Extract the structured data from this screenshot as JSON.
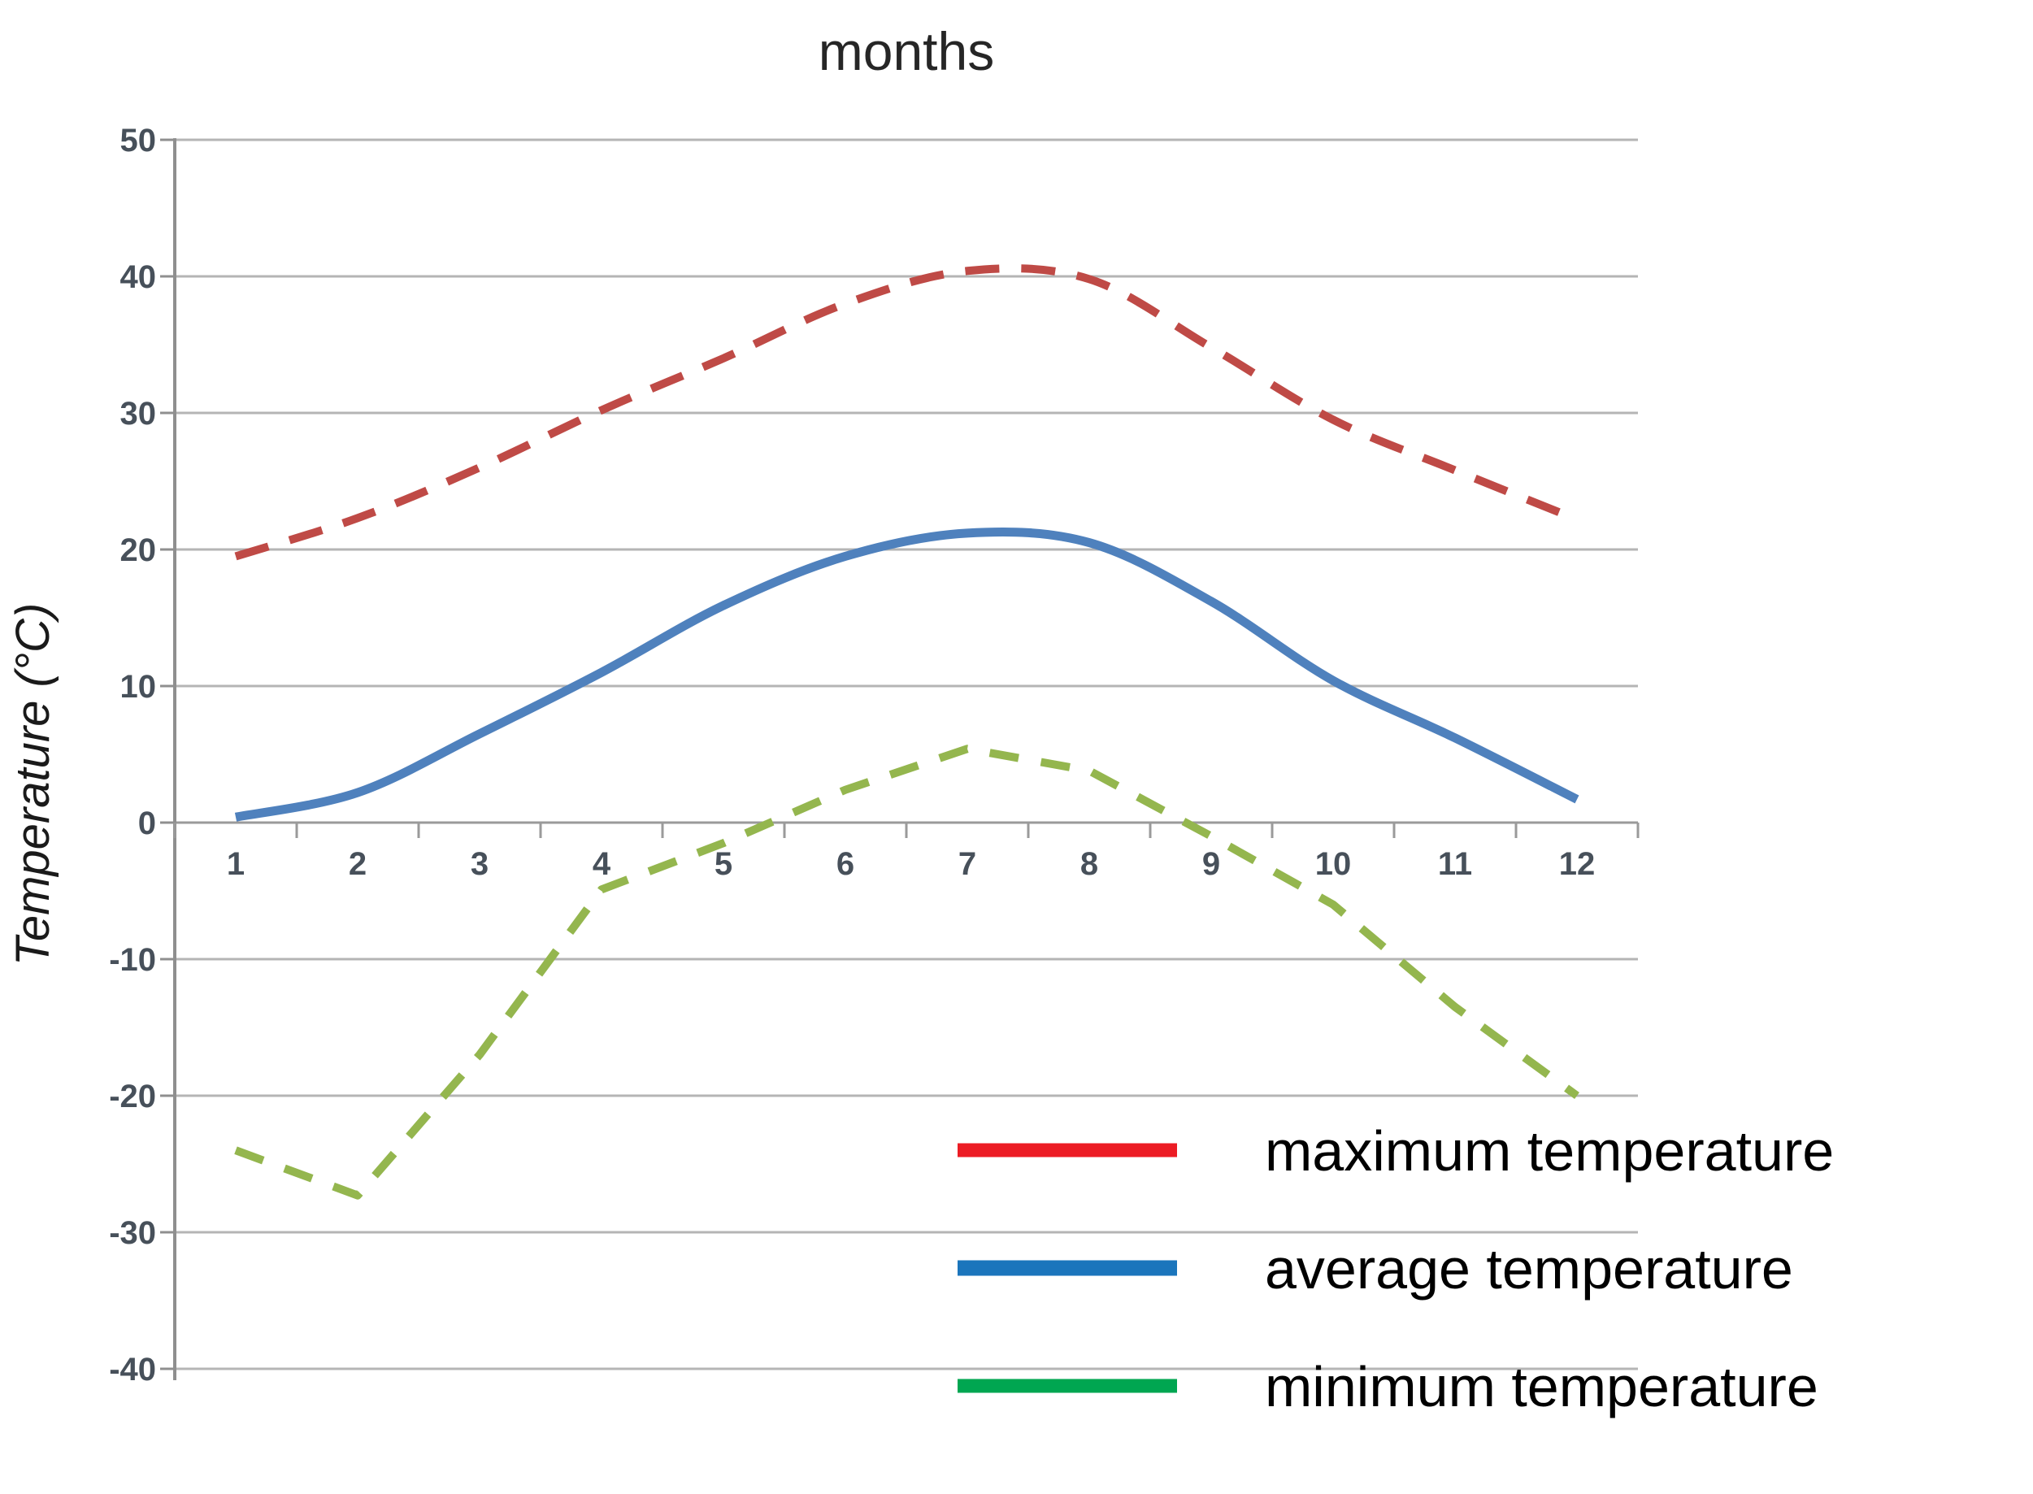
{
  "chart_data": {
    "type": "line",
    "title": "months",
    "xlabel": "months",
    "ylabel": "Temperature (°C)",
    "x": [
      1,
      2,
      3,
      4,
      5,
      6,
      7,
      8,
      9,
      10,
      11,
      12
    ],
    "x_tick_labels": [
      "1",
      "2",
      "3",
      "4",
      "5",
      "6",
      "7",
      "8",
      "9",
      "10",
      "11",
      "12"
    ],
    "y_ticks": [
      50,
      40,
      30,
      20,
      10,
      0,
      -10,
      -20,
      -30,
      -40
    ],
    "ylim": [
      -40,
      50
    ],
    "grid": true,
    "legend_position": "bottom-right",
    "series": [
      {
        "name": "maximum temperature",
        "style": "dashed",
        "smooth": true,
        "color": "#bf4a46",
        "values": [
          19.5,
          22.3,
          26.0,
          30.2,
          34.0,
          38.0,
          40.4,
          39.8,
          34.8,
          29.5,
          25.8,
          22.2
        ]
      },
      {
        "name": "average temperature",
        "style": "solid",
        "smooth": true,
        "color": "#4f81bd",
        "values": [
          0.4,
          2.2,
          6.5,
          11.0,
          15.9,
          19.5,
          21.2,
          20.5,
          16.2,
          10.4,
          6.2,
          1.7
        ]
      },
      {
        "name": "minimum temperature",
        "style": "dashed",
        "smooth": false,
        "color": "#94b64e",
        "values": [
          -24.0,
          -27.3,
          -17.0,
          -4.9,
          -1.5,
          2.4,
          5.4,
          3.8,
          -1.0,
          -6.0,
          -13.5,
          -20.0
        ]
      }
    ],
    "legend": [
      {
        "label": "maximum temperature",
        "swatch_color": "#ec1c24"
      },
      {
        "label": "average temperature",
        "swatch_color": "#1b75bc"
      },
      {
        "label": "minimum temperature",
        "swatch_color": "#00a651"
      }
    ]
  },
  "colors": {
    "gridline": "#b5b5b5",
    "zero_axis": "#9a9a9a",
    "y_axis_line": "#8f8f8f",
    "tick_label": "#47505a",
    "title": "#262626",
    "legend_text": "#000000",
    "background": "#ffffff"
  }
}
